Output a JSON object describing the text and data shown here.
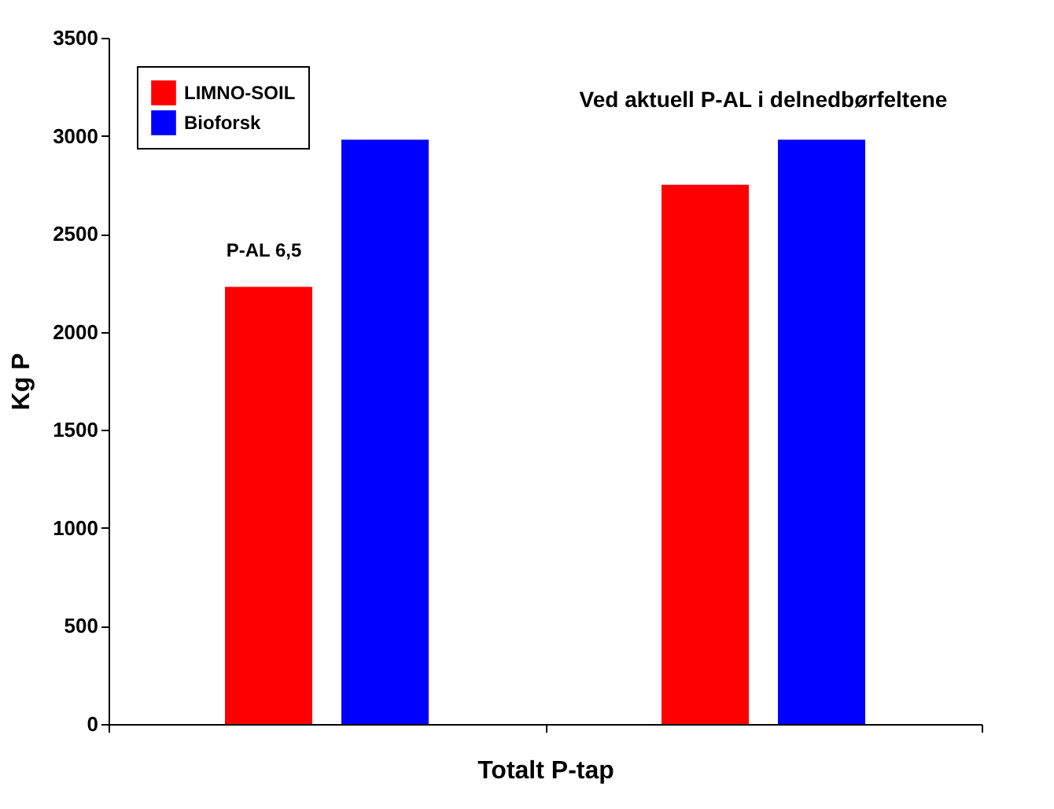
{
  "chart_data": {
    "type": "bar",
    "xlabel": "Totalt P-tap",
    "ylabel": "Kg P",
    "categories": [
      null,
      null
    ],
    "series": [
      {
        "name": "LIMNO-SOIL",
        "color": "#ff0000",
        "values": [
          2230,
          2750
        ]
      },
      {
        "name": "Bioforsk",
        "color": "#0000ff",
        "values": [
          2980,
          2980
        ]
      }
    ],
    "ylim": [
      0,
      3500
    ],
    "yticks": [
      0,
      500,
      1000,
      1500,
      2000,
      2500,
      3000,
      3500
    ],
    "annotations": [
      "P-AL 6,5",
      "Ved aktuell P-AL i delnedbørfeltene"
    ],
    "legend": "top left",
    "grid": false
  }
}
